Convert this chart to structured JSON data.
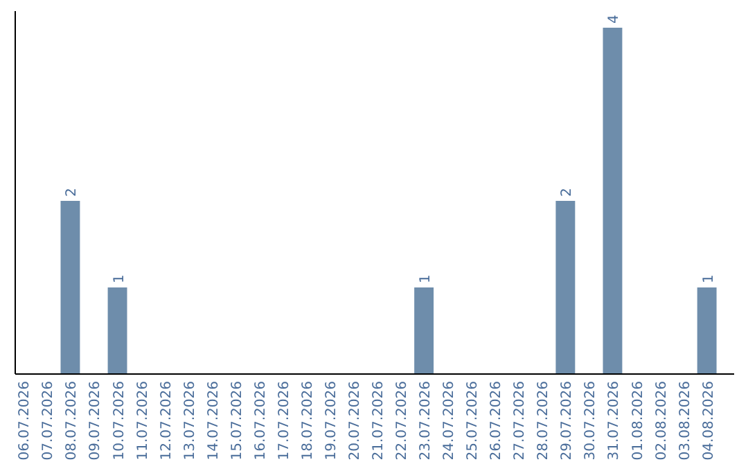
{
  "chart_data": {
    "type": "bar",
    "categories": [
      "06.07.2026",
      "07.07.2026",
      "08.07.2026",
      "09.07.2026",
      "10.07.2026",
      "11.07.2026",
      "12.07.2026",
      "13.07.2026",
      "14.07.2026",
      "15.07.2026",
      "16.07.2026",
      "17.07.2026",
      "18.07.2026",
      "19.07.2026",
      "20.07.2026",
      "21.07.2026",
      "22.07.2026",
      "23.07.2026",
      "24.07.2026",
      "25.07.2026",
      "26.07.2026",
      "27.07.2026",
      "28.07.2026",
      "29.07.2026",
      "30.07.2026",
      "31.07.2026",
      "01.08.2026",
      "02.08.2026",
      "03.08.2026",
      "04.08.2026"
    ],
    "values": [
      0,
      0,
      2,
      0,
      1,
      0,
      0,
      0,
      0,
      0,
      0,
      0,
      0,
      0,
      0,
      0,
      0,
      1,
      0,
      0,
      0,
      0,
      0,
      2,
      0,
      4,
      0,
      0,
      0,
      1
    ],
    "value_labels": [
      null,
      null,
      "2",
      null,
      "1",
      null,
      null,
      null,
      null,
      null,
      null,
      null,
      null,
      null,
      null,
      null,
      null,
      "1",
      null,
      null,
      null,
      null,
      null,
      "2",
      null,
      "4",
      null,
      null,
      null,
      "1"
    ],
    "color": "#6e8dab"
  }
}
